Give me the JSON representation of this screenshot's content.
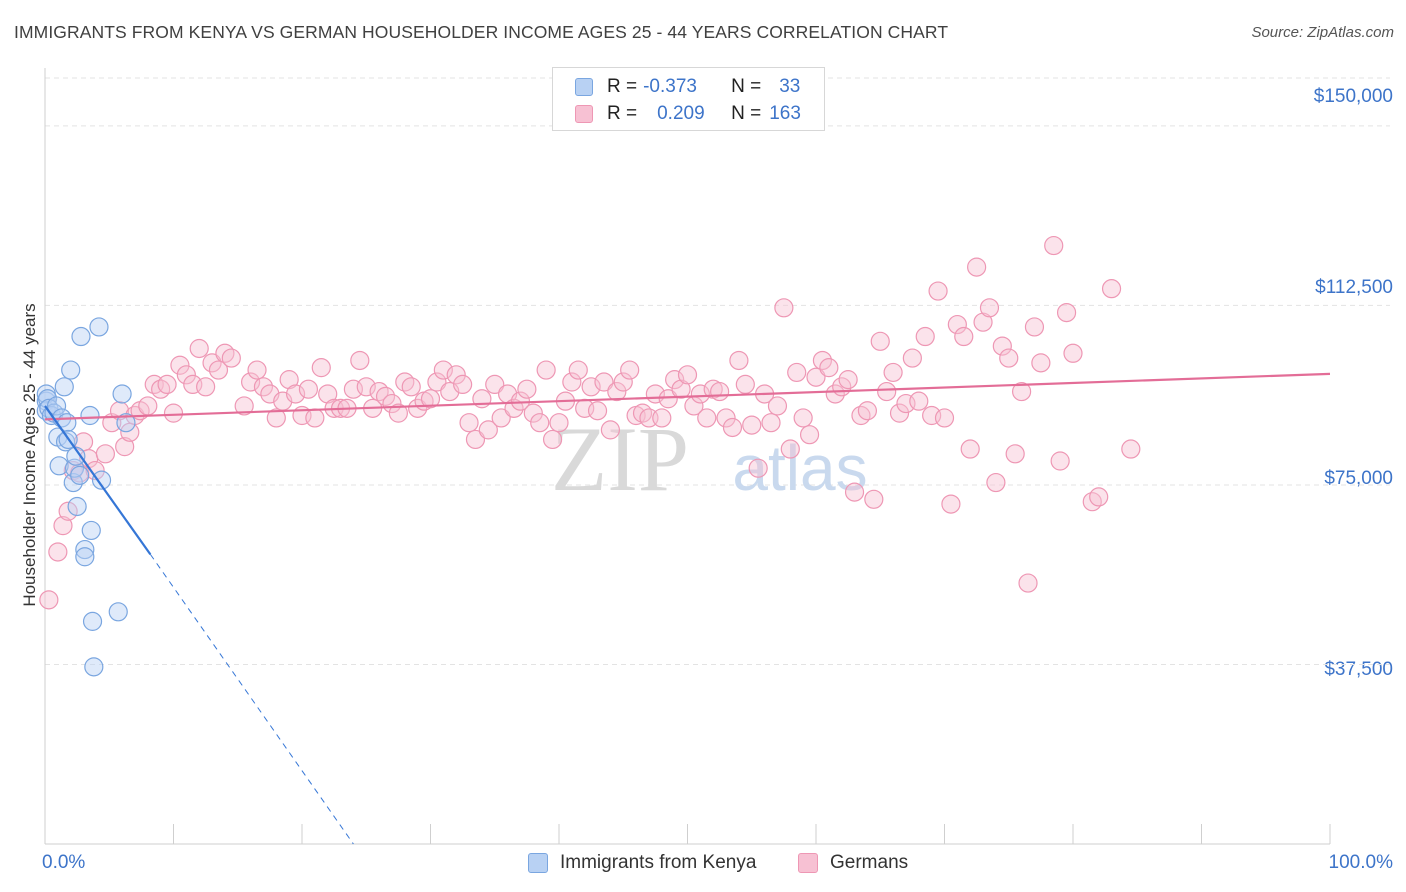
{
  "title": "IMMIGRANTS FROM KENYA VS GERMAN HOUSEHOLDER INCOME AGES 25 - 44 YEARS CORRELATION CHART",
  "source": "Source: ZipAtlas.com",
  "watermark": {
    "zip": "ZIP",
    "atlas": "atlas"
  },
  "stats": {
    "kenya": {
      "r_label": "R =",
      "r": "-0.373",
      "n_label": "N =",
      "n": "33"
    },
    "germans": {
      "r_label": "R =",
      "r": "0.209",
      "n_label": "N =",
      "n": "163"
    }
  },
  "legend": {
    "kenya": "Immigrants from Kenya",
    "germans": "Germans"
  },
  "colors": {
    "kenya_fill": "#b8d1f3",
    "kenya_stroke": "#7aa6e0",
    "kenya_line": "#3576d6",
    "germans_fill": "#f7c1d3",
    "germans_stroke": "#ee97b4",
    "germans_line": "#e36d97",
    "tick_text": "#3d74c9"
  },
  "chart_data": {
    "type": "scatter",
    "title": "IMMIGRANTS FROM KENYA VS GERMAN HOUSEHOLDER INCOME AGES 25 - 44 years CORRELATION CHART",
    "xlabel": "",
    "ylabel": "Householder Income Ages 25 - 44 years",
    "xlim": [
      0,
      100
    ],
    "ylim": [
      0,
      160000
    ],
    "x_tick_labels": [
      "0.0%",
      "100.0%"
    ],
    "y_ticks": [
      37500,
      75000,
      112500,
      150000
    ],
    "y_tick_labels": [
      "$37,500",
      "$75,000",
      "$112,500",
      "$150,000"
    ],
    "grid": true,
    "legend_position": "bottom-center",
    "series": [
      {
        "name": "Immigrants from Kenya",
        "points": [
          [
            0.1,
            92500
          ],
          [
            0.1,
            94000
          ],
          [
            0.1,
            90500
          ],
          [
            0.2,
            93000
          ],
          [
            0.3,
            91000
          ],
          [
            0.5,
            89500
          ],
          [
            0.7,
            90000
          ],
          [
            0.9,
            91500
          ],
          [
            1.0,
            85000
          ],
          [
            1.1,
            79000
          ],
          [
            1.3,
            89000
          ],
          [
            1.5,
            95500
          ],
          [
            1.6,
            84000
          ],
          [
            1.7,
            88000
          ],
          [
            1.8,
            84500
          ],
          [
            2.0,
            99000
          ],
          [
            2.2,
            75500
          ],
          [
            2.3,
            78500
          ],
          [
            2.4,
            81000
          ],
          [
            2.5,
            70500
          ],
          [
            2.7,
            77000
          ],
          [
            2.8,
            106000
          ],
          [
            3.1,
            61500
          ],
          [
            3.1,
            60000
          ],
          [
            3.5,
            89500
          ],
          [
            3.6,
            65500
          ],
          [
            3.7,
            46500
          ],
          [
            3.8,
            37000
          ],
          [
            4.2,
            108000
          ],
          [
            4.4,
            76000
          ],
          [
            5.7,
            48500
          ],
          [
            6.0,
            94000
          ],
          [
            6.3,
            88000
          ]
        ],
        "trend": {
          "x1": 0,
          "y1": 91500,
          "x2": 8.2,
          "y2": 60500
        },
        "trend_extension": {
          "x1": 8.2,
          "y1": 60500,
          "x2": 24,
          "y2": 0
        }
      },
      {
        "name": "Germans",
        "points": [
          [
            0.3,
            51000
          ],
          [
            1.0,
            61000
          ],
          [
            1.4,
            66500
          ],
          [
            1.8,
            69500
          ],
          [
            2.2,
            78000
          ],
          [
            2.7,
            77500
          ],
          [
            3.0,
            84000
          ],
          [
            3.4,
            80500
          ],
          [
            3.9,
            78000
          ],
          [
            4.7,
            81500
          ],
          [
            5.2,
            88000
          ],
          [
            5.8,
            90500
          ],
          [
            6.2,
            83000
          ],
          [
            6.6,
            86000
          ],
          [
            7.0,
            89500
          ],
          [
            7.4,
            90500
          ],
          [
            8.0,
            91500
          ],
          [
            8.5,
            96000
          ],
          [
            9.0,
            95000
          ],
          [
            9.5,
            96000
          ],
          [
            10.0,
            90000
          ],
          [
            10.5,
            100000
          ],
          [
            11.0,
            98000
          ],
          [
            11.5,
            96000
          ],
          [
            12.0,
            103500
          ],
          [
            12.5,
            95500
          ],
          [
            13.0,
            100500
          ],
          [
            13.5,
            99000
          ],
          [
            14.0,
            102500
          ],
          [
            14.5,
            101500
          ],
          [
            15.5,
            91500
          ],
          [
            16.0,
            96500
          ],
          [
            16.5,
            99000
          ],
          [
            17.0,
            95500
          ],
          [
            17.5,
            94000
          ],
          [
            18.0,
            89000
          ],
          [
            18.5,
            92500
          ],
          [
            19.0,
            97000
          ],
          [
            19.5,
            94000
          ],
          [
            20.0,
            89500
          ],
          [
            20.5,
            95000
          ],
          [
            21.0,
            89000
          ],
          [
            21.5,
            99500
          ],
          [
            22.0,
            94000
          ],
          [
            22.5,
            91000
          ],
          [
            23.0,
            91000
          ],
          [
            23.5,
            91000
          ],
          [
            24.0,
            95000
          ],
          [
            24.5,
            101000
          ],
          [
            25.0,
            95500
          ],
          [
            25.5,
            91000
          ],
          [
            26.0,
            94500
          ],
          [
            26.5,
            93500
          ],
          [
            27.0,
            92000
          ],
          [
            27.5,
            90000
          ],
          [
            28.0,
            96500
          ],
          [
            28.5,
            95500
          ],
          [
            29.0,
            91000
          ],
          [
            29.5,
            92500
          ],
          [
            30.0,
            93000
          ],
          [
            30.5,
            96500
          ],
          [
            31.0,
            99000
          ],
          [
            31.5,
            94500
          ],
          [
            32.0,
            98000
          ],
          [
            32.5,
            96000
          ],
          [
            33.0,
            88000
          ],
          [
            33.5,
            84500
          ],
          [
            34.0,
            93000
          ],
          [
            34.5,
            86500
          ],
          [
            35.0,
            96000
          ],
          [
            35.5,
            89000
          ],
          [
            36.0,
            94000
          ],
          [
            36.5,
            91000
          ],
          [
            37.0,
            92500
          ],
          [
            37.5,
            95000
          ],
          [
            38.0,
            90000
          ],
          [
            38.5,
            88000
          ],
          [
            39.0,
            99000
          ],
          [
            39.5,
            84500
          ],
          [
            40.0,
            88000
          ],
          [
            40.5,
            92500
          ],
          [
            41.0,
            96500
          ],
          [
            41.5,
            99000
          ],
          [
            42.0,
            91000
          ],
          [
            42.5,
            95500
          ],
          [
            43.0,
            90500
          ],
          [
            43.5,
            96500
          ],
          [
            44.0,
            86500
          ],
          [
            44.5,
            94500
          ],
          [
            45.0,
            96500
          ],
          [
            45.5,
            99000
          ],
          [
            46.0,
            89500
          ],
          [
            46.5,
            90000
          ],
          [
            47.0,
            89000
          ],
          [
            47.5,
            94000
          ],
          [
            48.0,
            89000
          ],
          [
            48.5,
            93000
          ],
          [
            49.0,
            97000
          ],
          [
            49.5,
            95000
          ],
          [
            50.0,
            98000
          ],
          [
            50.5,
            91500
          ],
          [
            51.0,
            94000
          ],
          [
            51.5,
            89000
          ],
          [
            52.0,
            95000
          ],
          [
            52.5,
            94500
          ],
          [
            53.0,
            89000
          ],
          [
            53.5,
            87000
          ],
          [
            54.0,
            101000
          ],
          [
            54.5,
            96000
          ],
          [
            55.0,
            87500
          ],
          [
            55.5,
            78500
          ],
          [
            56.0,
            94000
          ],
          [
            56.5,
            88000
          ],
          [
            57.0,
            91500
          ],
          [
            57.5,
            112000
          ],
          [
            58.0,
            82500
          ],
          [
            58.5,
            98500
          ],
          [
            59.0,
            89000
          ],
          [
            59.5,
            85500
          ],
          [
            60.0,
            97500
          ],
          [
            60.5,
            101000
          ],
          [
            61.0,
            99500
          ],
          [
            61.5,
            94000
          ],
          [
            62.0,
            95500
          ],
          [
            62.5,
            97000
          ],
          [
            63.0,
            73500
          ],
          [
            63.5,
            89500
          ],
          [
            64.0,
            90500
          ],
          [
            64.5,
            72000
          ],
          [
            65.0,
            105000
          ],
          [
            65.5,
            94500
          ],
          [
            66.0,
            98500
          ],
          [
            66.5,
            90000
          ],
          [
            67.0,
            92000
          ],
          [
            67.5,
            101500
          ],
          [
            68.0,
            92500
          ],
          [
            68.5,
            106000
          ],
          [
            69.0,
            89500
          ],
          [
            69.5,
            115500
          ],
          [
            70.0,
            89000
          ],
          [
            70.5,
            71000
          ],
          [
            71.0,
            108500
          ],
          [
            71.5,
            106000
          ],
          [
            72.0,
            82500
          ],
          [
            72.5,
            120500
          ],
          [
            73.0,
            109000
          ],
          [
            73.5,
            112000
          ],
          [
            74.0,
            75500
          ],
          [
            74.5,
            104000
          ],
          [
            75.0,
            101500
          ],
          [
            75.5,
            81500
          ],
          [
            76.0,
            94500
          ],
          [
            76.5,
            54500
          ],
          [
            77.0,
            108000
          ],
          [
            77.5,
            100500
          ],
          [
            78.5,
            125000
          ],
          [
            79.0,
            80000
          ],
          [
            79.5,
            111000
          ],
          [
            80.0,
            102500
          ],
          [
            81.5,
            71500
          ],
          [
            82.0,
            72500
          ],
          [
            83.0,
            116000
          ],
          [
            84.5,
            82500
          ]
        ],
        "trend": {
          "x1": 0,
          "y1": 88700,
          "x2": 100,
          "y2": 98200
        }
      }
    ]
  }
}
